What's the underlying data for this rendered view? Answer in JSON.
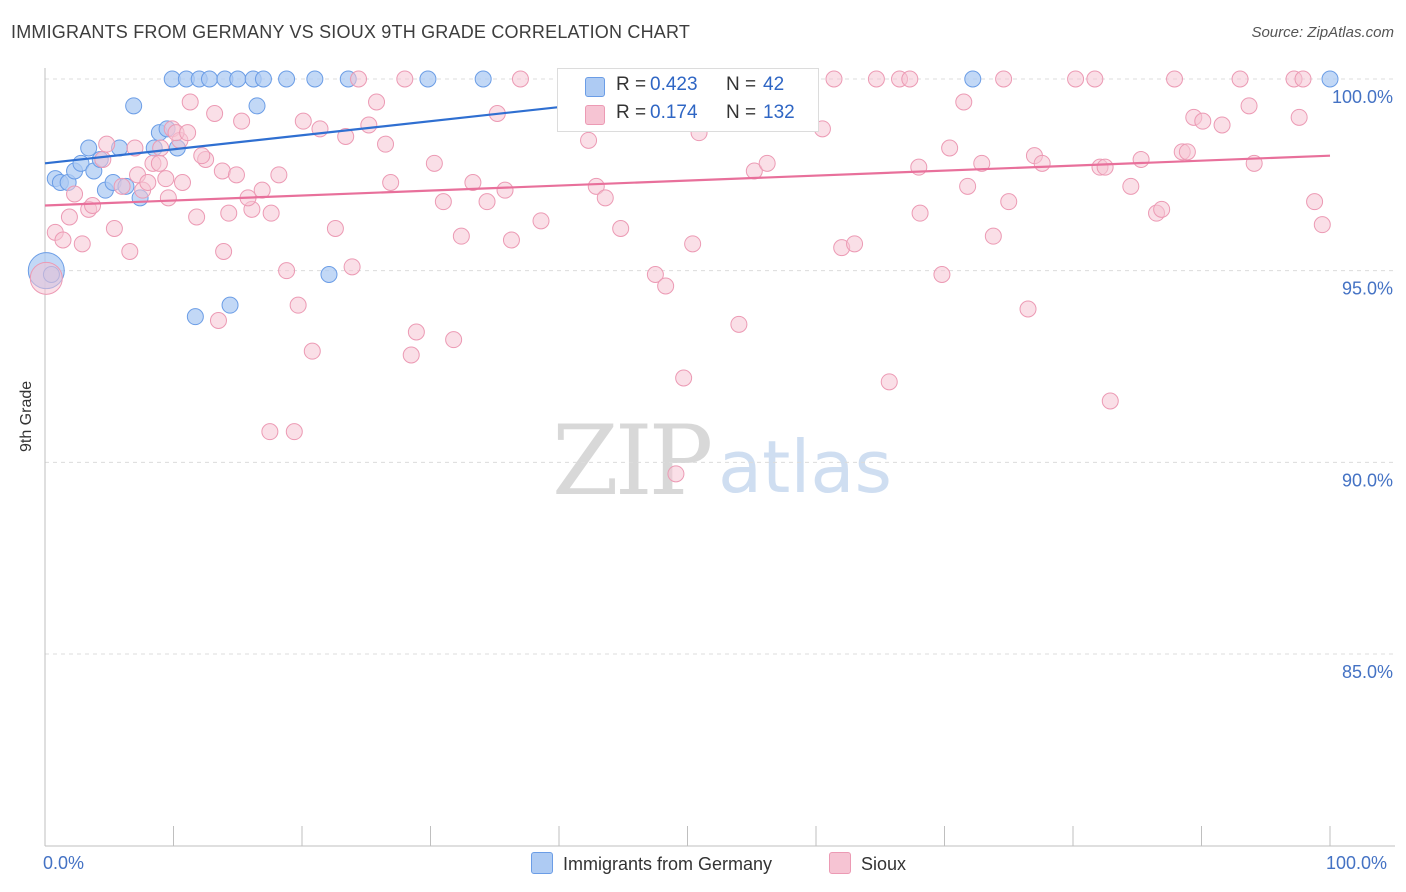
{
  "title": "IMMIGRANTS FROM GERMANY VS SIOUX 9TH GRADE CORRELATION CHART",
  "source": "Source: ZipAtlas.com",
  "watermark": {
    "zip": "ZIP",
    "atlas": "atlas"
  },
  "colors": {
    "blue_fill": "#aecbf3",
    "blue_stroke": "#6b9de6",
    "blue_line": "#2f6fd1",
    "pink_fill": "#f6c4d3",
    "pink_stroke": "#ec9ab4",
    "pink_line": "#e8709b",
    "axis_label": "#4472c4"
  },
  "legend": {
    "rows": [
      {
        "r_label": "R =",
        "r_value": "0.423",
        "n_label": "N =",
        "n_value": "42"
      },
      {
        "r_label": "R =",
        "r_value": "0.174",
        "n_label": "N =",
        "n_value": "132"
      }
    ]
  },
  "bottom_legend": {
    "series1": "Immigrants from Germany",
    "series2": "Sioux"
  },
  "chart_data": {
    "type": "scatter",
    "title": "IMMIGRANTS FROM GERMANY VS SIOUX 9TH GRADE CORRELATION CHART",
    "xlabel": "",
    "ylabel": "9th Grade",
    "xlim": [
      0,
      100
    ],
    "ylim": [
      80.2,
      100.8
    ],
    "x_tick_labels": [
      "0.0%",
      "100.0%"
    ],
    "y_ticks": [
      85,
      90,
      95,
      100
    ],
    "y_tick_labels": [
      "85.0%",
      "90.0%",
      "95.0%",
      "100.0%"
    ],
    "grid": true,
    "legend_position": "top-center",
    "series": [
      {
        "name": "Immigrants from Germany",
        "trend": {
          "x0": 0,
          "y0": 97.8,
          "x1": 60,
          "y1": 100.0
        },
        "points": [
          [
            0.1,
            95.0,
            18
          ],
          [
            0.8,
            97.4,
            8
          ],
          [
            1.2,
            97.3,
            8
          ],
          [
            1.8,
            97.3,
            8
          ],
          [
            2.3,
            97.6,
            8
          ],
          [
            2.8,
            97.8,
            8
          ],
          [
            3.4,
            98.2,
            8
          ],
          [
            3.8,
            97.6,
            8
          ],
          [
            4.3,
            97.9,
            8
          ],
          [
            4.7,
            97.1,
            8
          ],
          [
            5.3,
            97.3,
            8
          ],
          [
            5.8,
            98.2,
            8
          ],
          [
            6.3,
            97.2,
            8
          ],
          [
            7.4,
            96.9,
            8
          ],
          [
            6.9,
            99.3,
            8
          ],
          [
            8.5,
            98.2,
            8
          ],
          [
            8.9,
            98.6,
            8
          ],
          [
            9.5,
            98.7,
            8
          ],
          [
            10.3,
            98.2,
            8
          ],
          [
            9.9,
            100.0,
            8
          ],
          [
            11.0,
            100.0,
            8
          ],
          [
            12.0,
            100.0,
            8
          ],
          [
            12.8,
            100.0,
            8
          ],
          [
            14.0,
            100.0,
            8
          ],
          [
            15.0,
            100.0,
            8
          ],
          [
            16.2,
            100.0,
            8
          ],
          [
            17.0,
            100.0,
            8
          ],
          [
            18.8,
            100.0,
            8
          ],
          [
            21.0,
            100.0,
            8
          ],
          [
            23.6,
            100.0,
            8
          ],
          [
            29.8,
            100.0,
            8
          ],
          [
            34.1,
            100.0,
            8
          ],
          [
            41.0,
            100.0,
            8
          ],
          [
            51.0,
            100.0,
            8
          ],
          [
            55.9,
            100.0,
            8
          ],
          [
            72.2,
            100.0,
            8
          ],
          [
            100.0,
            100.0,
            8
          ],
          [
            16.5,
            99.3,
            8
          ],
          [
            11.7,
            93.8,
            8
          ],
          [
            14.4,
            94.1,
            8
          ],
          [
            22.1,
            94.9,
            8
          ],
          [
            0.5,
            94.9,
            8
          ]
        ]
      },
      {
        "name": "Sioux",
        "trend": {
          "x0": 0,
          "y0": 96.7,
          "x1": 100,
          "y1": 98.0
        },
        "points": [
          [
            0.1,
            94.8,
            16
          ],
          [
            0.8,
            96.0,
            8
          ],
          [
            1.4,
            95.8,
            8
          ],
          [
            1.9,
            96.4,
            8
          ],
          [
            2.3,
            97.0,
            8
          ],
          [
            2.9,
            95.7,
            8
          ],
          [
            3.4,
            96.6,
            8
          ],
          [
            3.7,
            96.7,
            8
          ],
          [
            4.5,
            97.9,
            8
          ],
          [
            4.8,
            98.3,
            8
          ],
          [
            5.4,
            96.1,
            8
          ],
          [
            6.0,
            97.2,
            8
          ],
          [
            6.6,
            95.5,
            8
          ],
          [
            7.2,
            97.5,
            8
          ],
          [
            7.6,
            97.1,
            8
          ],
          [
            8.0,
            97.3,
            8
          ],
          [
            8.4,
            97.8,
            8
          ],
          [
            9.0,
            98.2,
            8
          ],
          [
            9.4,
            97.4,
            8
          ],
          [
            9.9,
            98.7,
            8
          ],
          [
            10.5,
            98.4,
            8
          ],
          [
            10.2,
            98.6,
            8
          ],
          [
            11.3,
            99.4,
            8
          ],
          [
            11.8,
            96.4,
            8
          ],
          [
            12.5,
            97.9,
            8
          ],
          [
            13.2,
            99.1,
            8
          ],
          [
            13.8,
            97.6,
            8
          ],
          [
            14.3,
            96.5,
            8
          ],
          [
            14.9,
            97.5,
            8
          ],
          [
            15.3,
            98.9,
            8
          ],
          [
            16.1,
            96.6,
            8
          ],
          [
            16.9,
            97.1,
            8
          ],
          [
            17.6,
            96.5,
            8
          ],
          [
            18.2,
            97.5,
            8
          ],
          [
            18.8,
            95.0,
            8
          ],
          [
            19.7,
            94.1,
            8
          ],
          [
            20.1,
            98.9,
            8
          ],
          [
            20.8,
            92.9,
            8
          ],
          [
            21.4,
            98.7,
            8
          ],
          [
            22.6,
            96.1,
            8
          ],
          [
            23.4,
            98.5,
            8
          ],
          [
            23.9,
            95.1,
            8
          ],
          [
            24.4,
            100.0,
            8
          ],
          [
            25.2,
            98.8,
            8
          ],
          [
            25.8,
            99.4,
            8
          ],
          [
            26.5,
            98.3,
            8
          ],
          [
            26.9,
            97.3,
            8
          ],
          [
            28.0,
            100.0,
            8
          ],
          [
            28.9,
            93.4,
            8
          ],
          [
            30.3,
            97.8,
            8
          ],
          [
            31.0,
            96.8,
            8
          ],
          [
            31.8,
            93.2,
            8
          ],
          [
            32.4,
            95.9,
            8
          ],
          [
            33.3,
            97.3,
            8
          ],
          [
            34.4,
            96.8,
            8
          ],
          [
            35.2,
            99.1,
            8
          ],
          [
            35.8,
            97.1,
            8
          ],
          [
            37.0,
            100.0,
            8
          ],
          [
            41.2,
            99.2,
            8
          ],
          [
            42.3,
            98.4,
            8
          ],
          [
            42.9,
            97.2,
            8
          ],
          [
            43.6,
            96.9,
            8
          ],
          [
            44.8,
            96.1,
            8
          ],
          [
            46.1,
            100.0,
            8
          ],
          [
            47.3,
            100.0,
            8
          ],
          [
            47.5,
            94.9,
            8
          ],
          [
            48.3,
            94.6,
            8
          ],
          [
            49.1,
            89.7,
            8
          ],
          [
            49.7,
            92.2,
            8
          ],
          [
            50.4,
            95.7,
            8
          ],
          [
            50.9,
            98.6,
            8
          ],
          [
            52.4,
            100.0,
            8
          ],
          [
            54.0,
            93.6,
            8
          ],
          [
            55.2,
            97.6,
            8
          ],
          [
            56.2,
            97.8,
            8
          ],
          [
            58.8,
            100.0,
            8
          ],
          [
            60.5,
            98.7,
            8
          ],
          [
            61.4,
            100.0,
            8
          ],
          [
            62.0,
            95.6,
            8
          ],
          [
            63.0,
            95.7,
            8
          ],
          [
            64.7,
            100.0,
            8
          ],
          [
            65.7,
            92.1,
            8
          ],
          [
            66.5,
            100.0,
            8
          ],
          [
            67.3,
            100.0,
            8
          ],
          [
            68.0,
            97.7,
            8
          ],
          [
            68.1,
            96.5,
            8
          ],
          [
            69.8,
            94.9,
            8
          ],
          [
            70.4,
            98.2,
            8
          ],
          [
            71.5,
            99.4,
            8
          ],
          [
            71.8,
            97.2,
            8
          ],
          [
            72.9,
            97.8,
            8
          ],
          [
            73.8,
            95.9,
            8
          ],
          [
            74.6,
            100.0,
            8
          ],
          [
            75.0,
            96.8,
            8
          ],
          [
            76.5,
            94.0,
            8
          ],
          [
            77.0,
            98.0,
            8
          ],
          [
            77.6,
            97.8,
            8
          ],
          [
            80.2,
            100.0,
            8
          ],
          [
            81.7,
            100.0,
            8
          ],
          [
            82.1,
            97.7,
            8
          ],
          [
            82.5,
            97.7,
            8
          ],
          [
            82.9,
            91.6,
            8
          ],
          [
            84.5,
            97.2,
            8
          ],
          [
            85.3,
            97.9,
            8
          ],
          [
            86.5,
            96.5,
            8
          ],
          [
            86.9,
            96.6,
            8
          ],
          [
            87.9,
            100.0,
            8
          ],
          [
            88.5,
            98.1,
            8
          ],
          [
            88.9,
            98.1,
            8
          ],
          [
            89.4,
            99.0,
            8
          ],
          [
            90.1,
            98.9,
            8
          ],
          [
            91.6,
            98.8,
            8
          ],
          [
            93.0,
            100.0,
            8
          ],
          [
            93.7,
            99.3,
            8
          ],
          [
            94.1,
            97.8,
            8
          ],
          [
            97.2,
            100.0,
            8
          ],
          [
            97.9,
            100.0,
            8
          ],
          [
            97.6,
            99.0,
            8
          ],
          [
            98.8,
            96.8,
            8
          ],
          [
            99.4,
            96.2,
            8
          ],
          [
            17.5,
            90.8,
            8
          ],
          [
            19.4,
            90.8,
            8
          ],
          [
            13.5,
            93.7,
            8
          ],
          [
            28.5,
            92.8,
            8
          ],
          [
            7.0,
            98.2,
            8
          ],
          [
            8.9,
            97.8,
            8
          ],
          [
            11.1,
            98.6,
            8
          ],
          [
            12.2,
            98.0,
            8
          ],
          [
            13.9,
            95.5,
            8
          ],
          [
            15.8,
            96.9,
            8
          ],
          [
            10.7,
            97.3,
            8
          ],
          [
            9.6,
            96.9,
            8
          ],
          [
            36.3,
            95.8,
            8
          ],
          [
            38.6,
            96.3,
            8
          ]
        ]
      }
    ]
  }
}
